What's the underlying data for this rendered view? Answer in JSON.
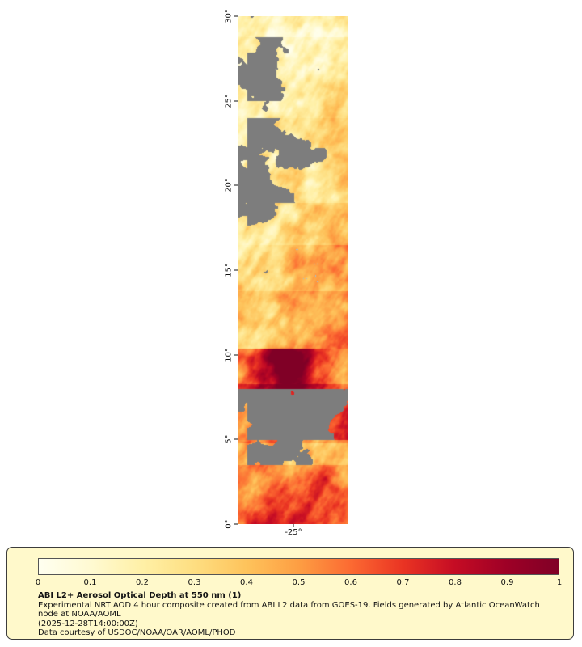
{
  "map": {
    "lat_tick_labels": [
      "30°",
      "25°",
      "20°",
      "15°",
      "10°",
      "5°",
      "0°"
    ],
    "lon_tick_label": "-25°",
    "nodata_color": "#7d7d7d",
    "water_color": "#a9bdc9"
  },
  "legend": {
    "background": "#fff9cb",
    "border_color": "#3c3c3c",
    "tick_labels": [
      "0",
      "0.1",
      "0.2",
      "0.3",
      "0.4",
      "0.5",
      "0.6",
      "0.7",
      "0.8",
      "0.9",
      "1"
    ],
    "title": "ABI L2+ Aerosol Optical Depth at 550 nm (1)",
    "description": "Experimental NRT AOD 4 hour composite created from ABI L2 data from GOES-19. Fields generated by Atlantic OceanWatch node at NOAA/AOML",
    "timestamp": "(2025-12-28T14:00:00Z)",
    "courtesy": "Data courtesy of USDOC/NOAA/OAR/AOML/PHOD"
  },
  "chart_data": {
    "type": "heatmap",
    "title": "ABI L2+ Aerosol Optical Depth at 550 nm (1)",
    "variable": "Aerosol Optical Depth at 550 nm",
    "source_text": "ABI L2 data from GOES-19",
    "x_axis": {
      "meaning": "longitude",
      "tick_labels": [
        "-25°"
      ]
    },
    "y_axis": {
      "meaning": "latitude",
      "tick_labels": [
        "0°",
        "5°",
        "10°",
        "15°",
        "20°",
        "25°",
        "30°"
      ],
      "range": [
        0,
        30
      ]
    },
    "colorbar": {
      "range": [
        0,
        1
      ],
      "ticks": [
        0,
        0.1,
        0.2,
        0.3,
        0.4,
        0.5,
        0.6,
        0.7,
        0.8,
        0.9,
        1
      ],
      "position": "bottom"
    },
    "colormap_stops": [
      {
        "v": 0.0,
        "color": "#fffff0"
      },
      {
        "v": 0.1,
        "color": "#fffad2"
      },
      {
        "v": 0.2,
        "color": "#fff0a6"
      },
      {
        "v": 0.3,
        "color": "#fede81"
      },
      {
        "v": 0.4,
        "color": "#fec35b"
      },
      {
        "v": 0.5,
        "color": "#fd9e43"
      },
      {
        "v": 0.6,
        "color": "#fc6a32"
      },
      {
        "v": 0.7,
        "color": "#ea3423"
      },
      {
        "v": 0.8,
        "color": "#c50c24"
      },
      {
        "v": 0.9,
        "color": "#9e0026"
      },
      {
        "v": 1.0,
        "color": "#800026"
      }
    ],
    "nodata_color": "#7d7d7d",
    "regions_summary": [
      {
        "lat_range": [
          25,
          30
        ],
        "aod": "0.1-0.3 pale haze; gray no-data patches on west side"
      },
      {
        "lat_range": [
          17,
          25
        ],
        "aod": "0.15-0.35; large gray no-data area over west half"
      },
      {
        "lat_range": [
          10,
          17
        ],
        "aod": "0.25-0.6; orange plumes strengthening eastward"
      },
      {
        "lat_range": [
          8,
          10
        ],
        "aod": "0.7-1.0 dense dark-red plume near center of swath"
      },
      {
        "lat_range": [
          5,
          8
        ],
        "aod": "mostly gray no-data with red streaks"
      },
      {
        "lat_range": [
          0,
          5
        ],
        "aod": "0.4-0.9 widespread orange/red plume, darkest 1-3°"
      }
    ]
  }
}
